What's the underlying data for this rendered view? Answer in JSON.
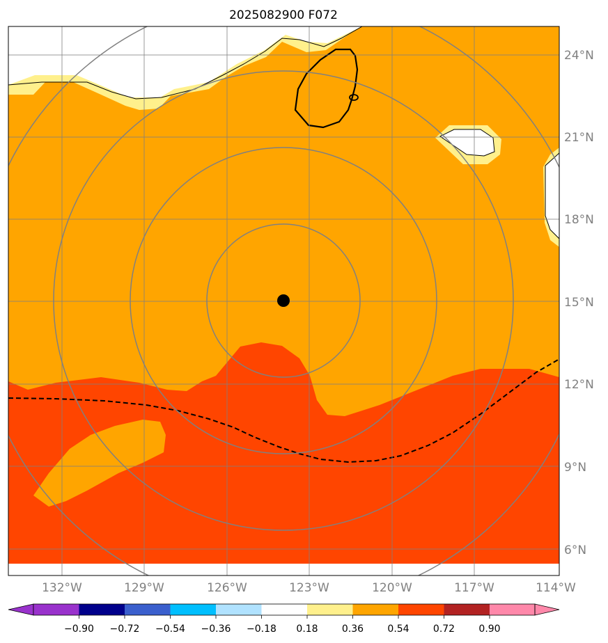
{
  "title": "2025082900 F072",
  "map": {
    "lon_range": [
      -134,
      -114
    ],
    "lat_range": [
      5,
      25
    ],
    "lon_ticks": [
      "132°W",
      "129°W",
      "126°W",
      "123°W",
      "120°W",
      "117°W",
      "114°W"
    ],
    "lat_ticks": [
      "24°N",
      "21°N",
      "18°N",
      "15°N",
      "12°N",
      "9°N",
      "6°N"
    ],
    "center_marker": {
      "lon": -124,
      "lat": 15.1
    },
    "range_rings": 4,
    "colors": {
      "field_positive_high": "#ffa500",
      "field_very_high": "#ff4500",
      "field_edge": "#fff08c",
      "gridlines": "#808080"
    }
  },
  "colorbar": {
    "tick_labels": [
      "−0.90",
      "−0.72",
      "−0.54",
      "−0.36",
      "−0.18",
      "0.18",
      "0.36",
      "0.54",
      "0.72",
      "0.90"
    ],
    "colors": [
      "#8b00ff",
      "#9932cc",
      "#00008b",
      "#3a5fcd",
      "#00bfff",
      "#b0e2ff",
      "#ffffff",
      "#fff08c",
      "#ffa500",
      "#ff4500",
      "#b22222",
      "#ff88aa",
      "#ff69b4"
    ]
  }
}
